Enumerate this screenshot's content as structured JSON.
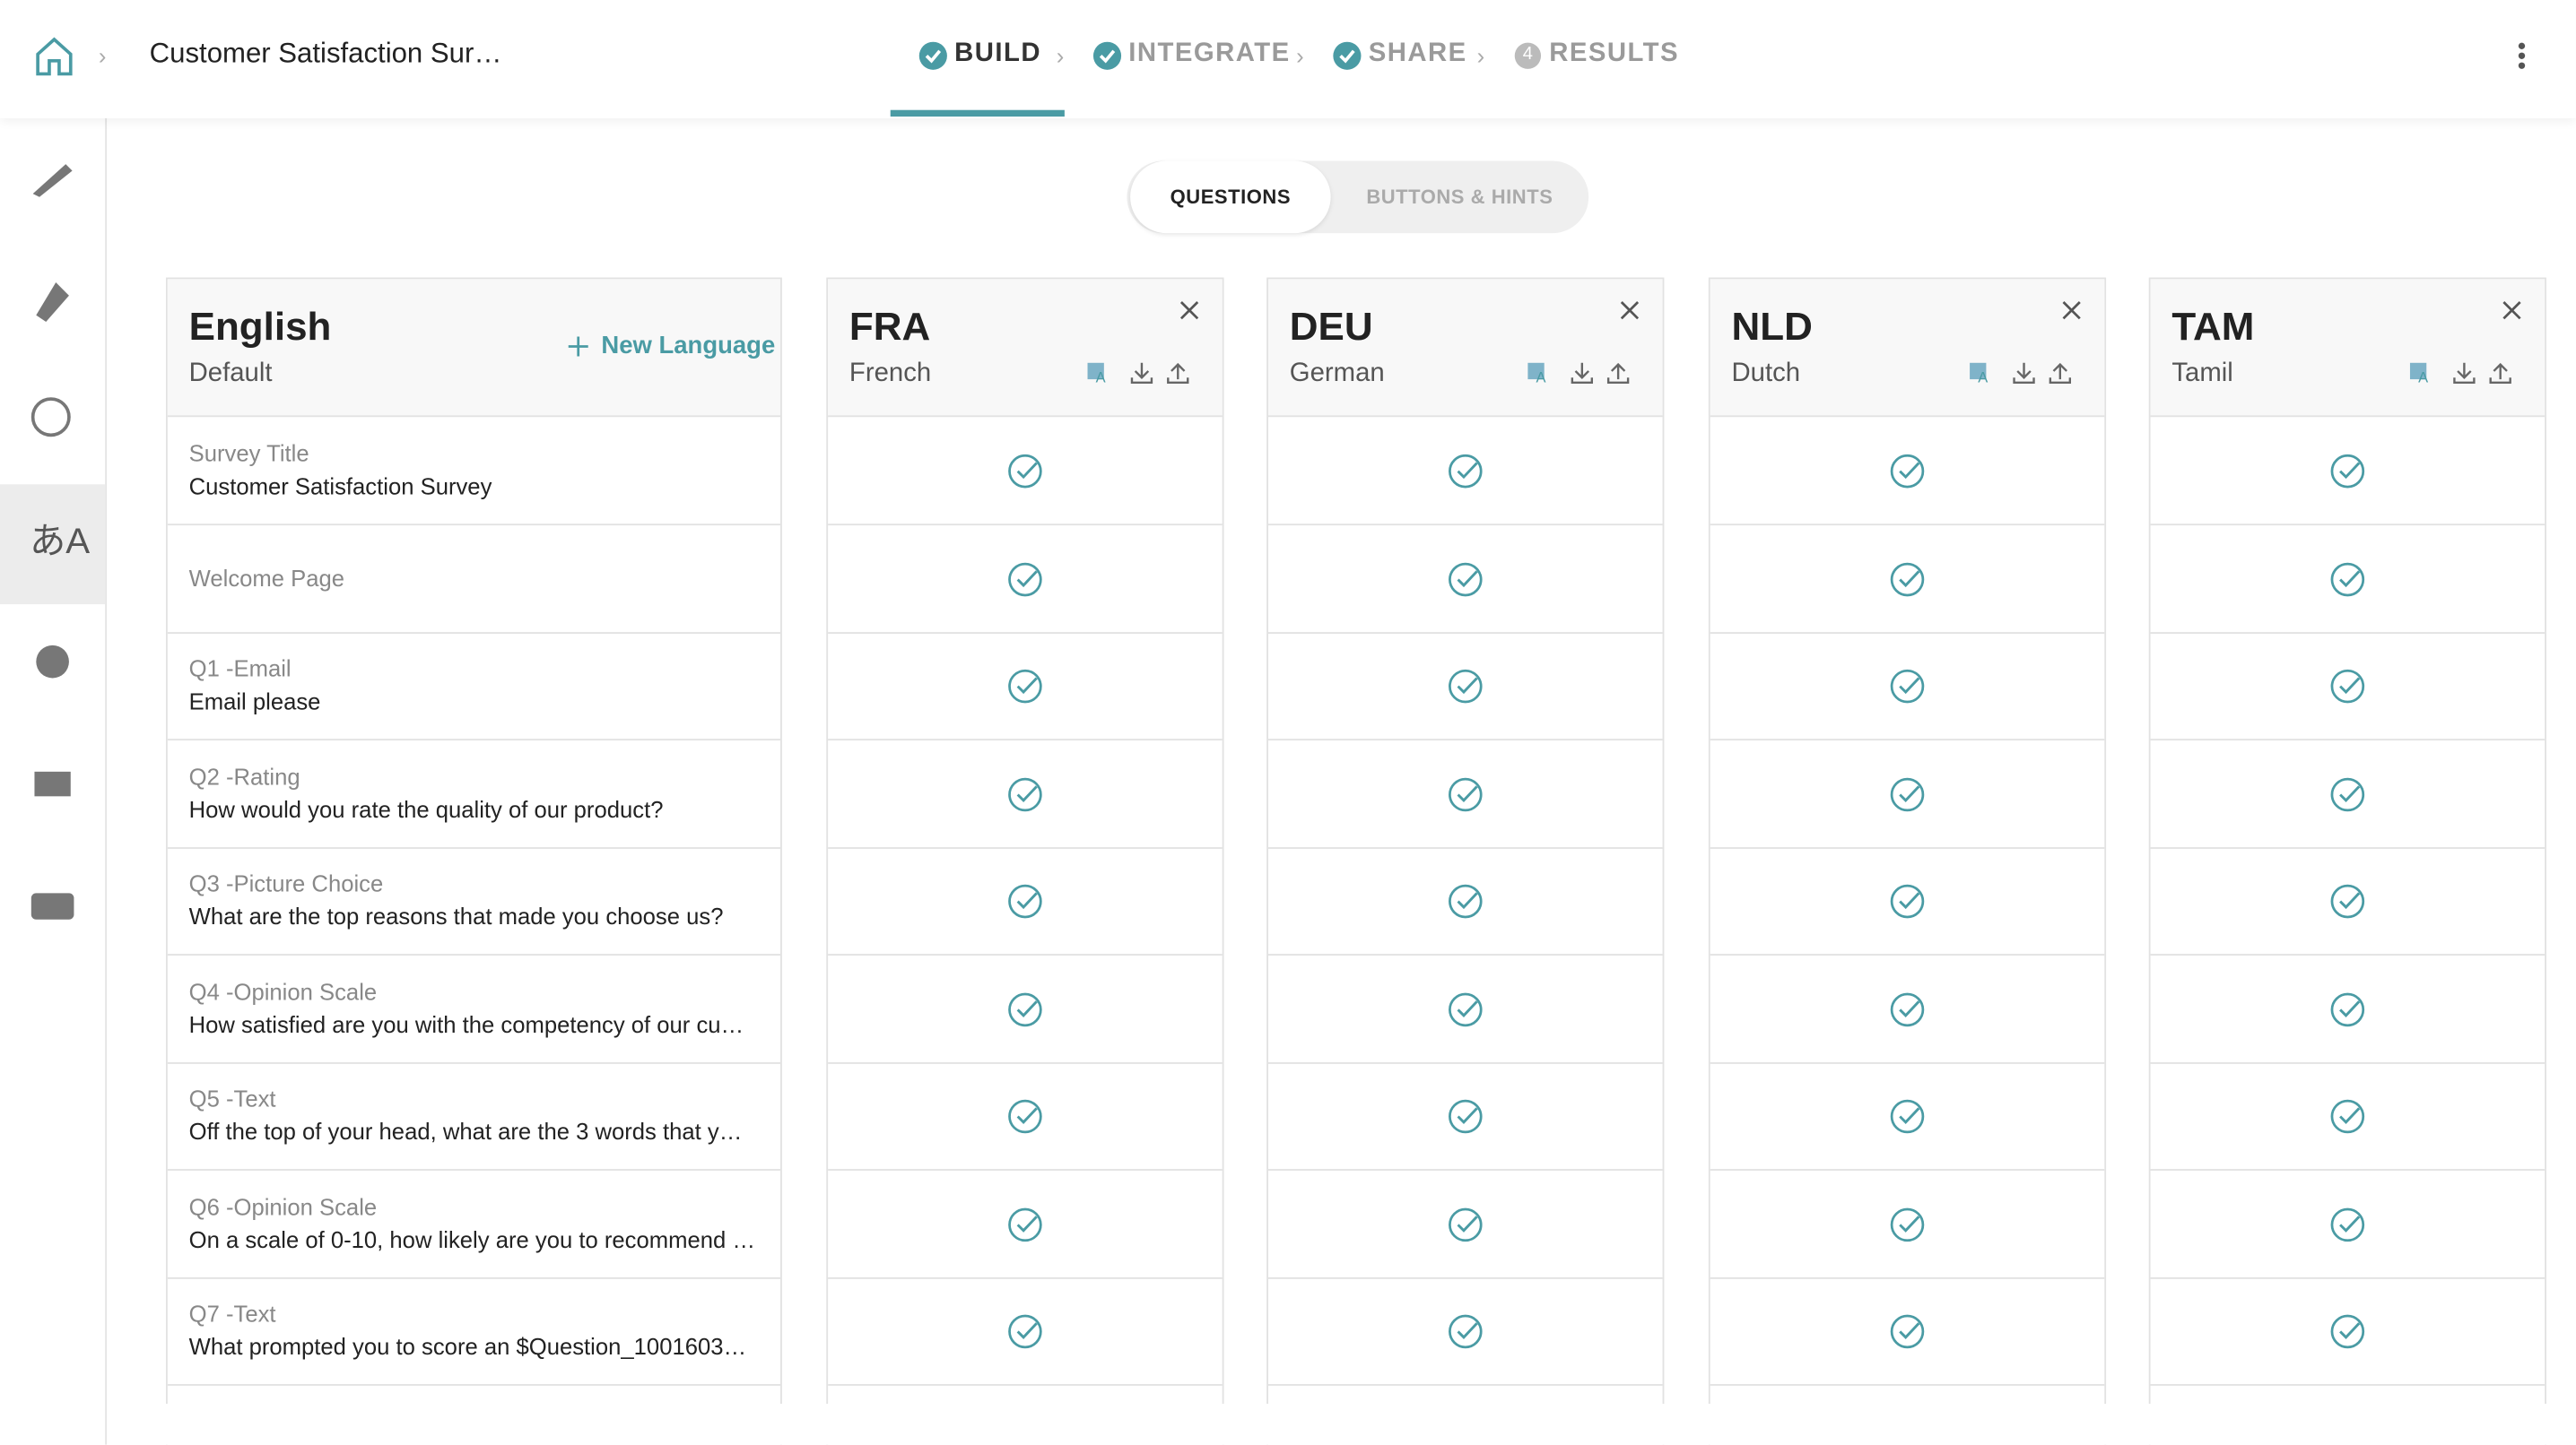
{
  "header": {
    "survey_title": "Customer Satisfaction Sur…",
    "steps": [
      {
        "label": "BUILD"
      },
      {
        "label": "INTEGRATE"
      },
      {
        "label": "SHARE"
      },
      {
        "label": "RESULTS",
        "badge": "4"
      }
    ]
  },
  "tabs": [
    "QUESTIONS",
    "BUTTONS & HINTS"
  ],
  "base_language": {
    "name": "English",
    "note": "Default",
    "action": "New Language"
  },
  "languages": [
    {
      "code": "FRA",
      "name": "French"
    },
    {
      "code": "DEU",
      "name": "German"
    },
    {
      "code": "NLD",
      "name": "Dutch"
    },
    {
      "code": "TAM",
      "name": "Tamil"
    }
  ],
  "rows": [
    {
      "label": "Survey Title",
      "text": "Customer Satisfaction Survey"
    },
    {
      "label": "Welcome Page"
    },
    {
      "label": "Q1 -Email",
      "text": "Email please"
    },
    {
      "label": "Q2 -Rating",
      "text": "How would you rate the quality of our product?"
    },
    {
      "label": "Q3 -Picture Choice",
      "text": "What are the top reasons that made you choose us?"
    },
    {
      "label": "Q4 -Opinion Scale",
      "text": "How satisfied are you with the competency of our cu…"
    },
    {
      "label": "Q5 -Text",
      "text": "Off the top of your head, what are the 3 words that y…"
    },
    {
      "label": "Q6 -Opinion Scale",
      "text": "On a scale of 0-10, how likely are you to recommend …"
    },
    {
      "label": "Q7 -Text",
      "text": "What prompted you to score an $Question_1001603…"
    }
  ]
}
